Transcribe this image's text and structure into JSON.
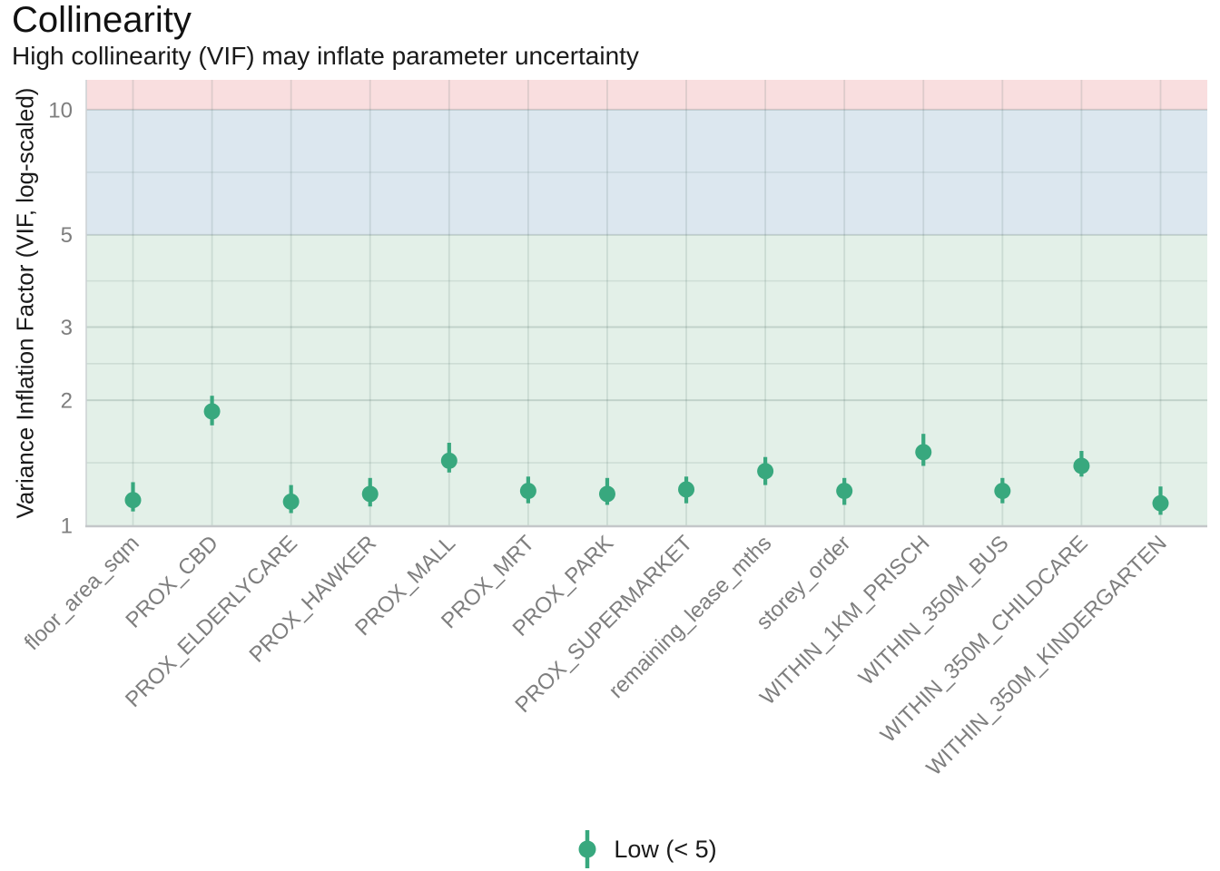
{
  "title": "Collinearity",
  "subtitle": "High collinearity (VIF) may inflate parameter uncertainty",
  "legend": {
    "label": "Low (< 5)",
    "position": "bottom"
  },
  "colors": {
    "point": "#38a87e",
    "band_low": "#e3f0e8",
    "band_moderate": "#dce7ef",
    "band_high": "#f9dedf",
    "axis_text": "#7e7e7e",
    "text": "#1a1a1a",
    "panel_border_bottom": "#c3c7c9",
    "panel_border_left": "#ccd0d3"
  },
  "chart_data": {
    "type": "scatter",
    "subtype": "pointrange",
    "title": "Collinearity",
    "subtitle": "High collinearity (VIF) may inflate parameter uncertainty",
    "xlabel": "",
    "ylabel": "Variance Inflation Factor (VIF, log-scaled)",
    "y_scale": "log",
    "ylim": [
      1,
      11.8
    ],
    "y_major_ticks": [
      1,
      2,
      3,
      5,
      10
    ],
    "y_minor_gridlines": [
      1.414,
      2.449,
      3.873,
      7.071
    ],
    "grid": true,
    "legend_position": "bottom",
    "categories": [
      "floor_area_sqm",
      "PROX_CBD",
      "PROX_ELDERLYCARE",
      "PROX_HAWKER",
      "PROX_MALL",
      "PROX_MRT",
      "PROX_PARK",
      "PROX_SUPERMARKET",
      "remaining_lease_mths",
      "storey_order",
      "WITHIN_1KM_PRISCH",
      "WITHIN_350M_BUS",
      "WITHIN_350M_CHILDCARE",
      "WITHIN_350M_KINDERGARTEN"
    ],
    "series": [
      {
        "name": "Low (< 5)",
        "color": "#38a87e",
        "values": [
          1.15,
          1.88,
          1.14,
          1.19,
          1.43,
          1.21,
          1.19,
          1.22,
          1.35,
          1.21,
          1.5,
          1.21,
          1.39,
          1.13
        ],
        "error_low": [
          1.08,
          1.74,
          1.07,
          1.11,
          1.34,
          1.13,
          1.12,
          1.13,
          1.25,
          1.12,
          1.39,
          1.13,
          1.31,
          1.06
        ],
        "error_high": [
          1.27,
          2.05,
          1.25,
          1.3,
          1.58,
          1.31,
          1.3,
          1.31,
          1.46,
          1.3,
          1.66,
          1.3,
          1.51,
          1.24
        ]
      }
    ],
    "bands": [
      {
        "from": 1,
        "to": 5,
        "color": "#e3f0e8"
      },
      {
        "from": 5,
        "to": 10,
        "color": "#dce7ef"
      },
      {
        "from": 10,
        "to": 11.8,
        "color": "#f9dedf"
      }
    ]
  }
}
